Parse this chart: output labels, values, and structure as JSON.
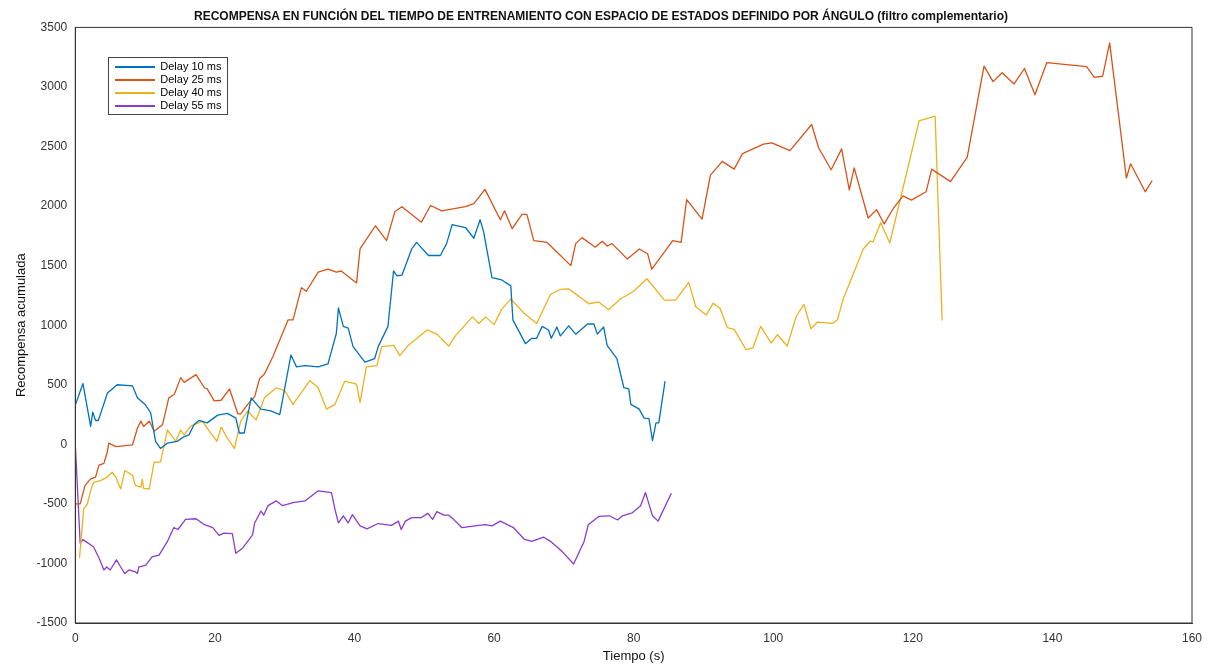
{
  "chart_data": {
    "type": "line",
    "title": "RECOMPENSA EN FUNCIÓN DEL TIEMPO DE ENTRENAMIENTO CON ESPACIO DE ESTADOS DEFINIDO POR ÁNGULO (filtro complementario)",
    "xlabel": "Tiempo (s)",
    "ylabel": "Recompensa acumulada",
    "xlim": [
      0,
      160
    ],
    "xticks": [
      0,
      20,
      40,
      60,
      80,
      100,
      120,
      140,
      160
    ],
    "ylim": [
      -1500,
      3500
    ],
    "yticks": [
      -1500,
      -1000,
      -500,
      0,
      500,
      1000,
      1500,
      2000,
      2500,
      3000,
      3500
    ],
    "grid": false,
    "legend": "top left",
    "marker": "none",
    "line_style": "solid",
    "series": [
      {
        "name": "Delay 10 ms",
        "color": "#0072bd",
        "x": [
          0,
          1.1,
          2.2,
          2.5,
          2.9,
          3.3,
          4.6,
          5,
          6,
          8.2,
          8.9,
          10,
          10.8,
          11.5,
          12.2,
          13.2,
          14.6,
          15.6,
          16.3,
          17,
          17.7,
          18.9,
          20.4,
          21.8,
          23,
          23.5,
          24.2,
          25.2,
          26.6,
          28,
          29.3,
          30.9,
          31.7,
          32.9,
          34.8,
          36.2,
          37.4,
          37.7,
          38.4,
          39.1,
          39.8,
          41.5,
          42.9,
          43.4,
          44.8,
          45.6,
          46.1,
          46.8,
          48.2,
          48.9,
          50.6,
          52.3,
          53.2,
          54,
          55.9,
          57.1,
          58,
          58.5,
          59.7,
          61.1,
          62.4,
          62.7,
          64.5,
          65.4,
          66.1,
          66.9,
          67.8,
          68.2,
          69,
          69.5,
          70.7,
          71.7,
          73.4,
          74.3,
          74.8,
          75.7,
          76.2,
          77.6,
          78.6,
          79.3,
          79.6,
          80.8,
          81.5,
          82.2,
          82.7,
          83.2,
          83.6,
          84.5
        ],
        "values": [
          330,
          510,
          150,
          270,
          200,
          200,
          430,
          450,
          500,
          490,
          390,
          335,
          265,
          25,
          -35,
          10,
          25,
          65,
          80,
          165,
          200,
          180,
          245,
          260,
          220,
          95,
          95,
          390,
          295,
          280,
          250,
          750,
          650,
          660,
          650,
          675,
          930,
          1145,
          990,
          975,
          820,
          690,
          720,
          820,
          990,
          1455,
          1415,
          1420,
          1640,
          1695,
          1585,
          1585,
          1685,
          1845,
          1820,
          1730,
          1885,
          1785,
          1400,
          1380,
          1330,
          1045,
          845,
          890,
          890,
          990,
          960,
          890,
          985,
          910,
          995,
          925,
          1010,
          1010,
          925,
          985,
          830,
          720,
          475,
          465,
          335,
          295,
          220,
          215,
          30,
          180,
          180,
          530
        ]
      },
      {
        "name": "Delay 25 ms",
        "color": "#d95319",
        "x": [
          0,
          0.7,
          1.4,
          2.2,
          2.9,
          3.4,
          4.1,
          4.6,
          4.8,
          5.8,
          8.2,
          8.9,
          9.4,
          9.8,
          10.6,
          11.3,
          12.5,
          13.4,
          14.2,
          15.1,
          15.6,
          17.3,
          18.5,
          18.9,
          19.9,
          20.9,
          22.1,
          23.3,
          23.7,
          24.7,
          25.7,
          26.4,
          27.1,
          28.3,
          30.5,
          31.2,
          32.4,
          33.1,
          34.8,
          36.2,
          37.4,
          38.1,
          40.3,
          40.8,
          43,
          44.6,
          45.8,
          46.8,
          49.6,
          50.9,
          52.5,
          55.9,
          57.1,
          58.7,
          60.9,
          61.5,
          62.6,
          64,
          64.7,
          65.7,
          67.6,
          71,
          71.7,
          72.6,
          74.5,
          75.5,
          76.2,
          76.9,
          79.1,
          80.8,
          82,
          82.6,
          85.6,
          86.8,
          87.6,
          89.8,
          91,
          92.7,
          94.4,
          95.6,
          98.6,
          99.8,
          102.4,
          105.5,
          106.5,
          108.3,
          109.8,
          110.9,
          111.6,
          113.6,
          114.8,
          115.9,
          117.2,
          118.6,
          119.8,
          121.9,
          122.7,
          125.4,
          127.8,
          130.2,
          131.5,
          132.8,
          134.5,
          136,
          137.5,
          139.2,
          144.9,
          146,
          147.2,
          148.2,
          150.6,
          151.2,
          153.3,
          154.3
        ],
        "values": [
          -500,
          -500,
          -345,
          -290,
          -275,
          -175,
          -160,
          -60,
          10,
          -20,
          -5,
          135,
          195,
          150,
          195,
          110,
          165,
          390,
          420,
          560,
          520,
          585,
          475,
          465,
          365,
          370,
          465,
          255,
          255,
          335,
          400,
          550,
          590,
          735,
          1045,
          1045,
          1315,
          1285,
          1445,
          1470,
          1445,
          1455,
          1355,
          1640,
          1835,
          1710,
          1955,
          1995,
          1865,
          2005,
          1960,
          1995,
          2020,
          2140,
          1885,
          1960,
          1810,
          1930,
          1930,
          1710,
          1695,
          1500,
          1685,
          1735,
          1655,
          1705,
          1665,
          1685,
          1555,
          1640,
          1600,
          1470,
          1710,
          1695,
          2055,
          1890,
          2260,
          2375,
          2310,
          2440,
          2520,
          2530,
          2465,
          2685,
          2490,
          2305,
          2480,
          2135,
          2320,
          1900,
          1970,
          1850,
          1980,
          2085,
          2050,
          2120,
          2310,
          2205,
          2410,
          3175,
          3045,
          3120,
          3025,
          3155,
          2935,
          3205,
          3170,
          3080,
          3090,
          3370,
          2235,
          2355,
          2120,
          2215
        ]
      },
      {
        "name": "Delay 40 ms",
        "color": "#edb120",
        "x": [
          0.6,
          1.2,
          1.7,
          2.2,
          2.6,
          3.6,
          4.6,
          5.3,
          5.8,
          6.5,
          7.1,
          8.2,
          8.6,
          9.4,
          9.6,
          9.8,
          10.6,
          11.3,
          12.2,
          13.2,
          14.4,
          15.1,
          15.6,
          16.5,
          18.2,
          19.2,
          20.3,
          20.9,
          21.8,
          22.8,
          23.7,
          24.7,
          25.9,
          27.1,
          28.8,
          30,
          31.2,
          33.6,
          34.8,
          36,
          37.2,
          38.6,
          40.3,
          40.8,
          41.7,
          43.2,
          43.9,
          45.6,
          46.5,
          47.7,
          50.4,
          51.8,
          53.5,
          54.5,
          56.9,
          57.8,
          58.8,
          60,
          61.1,
          62.4,
          64.3,
          66.1,
          68.1,
          69.5,
          70.7,
          73.6,
          75,
          76.4,
          78.1,
          80,
          81.9,
          84.4,
          86,
          87.9,
          88.9,
          90.4,
          91.4,
          92.4,
          93.4,
          94.4,
          96.1,
          97.1,
          98.2,
          99.7,
          100.6,
          102,
          103.3,
          104.4,
          105.4,
          106.3,
          108.5,
          109.2,
          110,
          112.9,
          113.9,
          114.3,
          115.4,
          116.7,
          120.9,
          123.2,
          124.2
        ],
        "values": [
          -955,
          -545,
          -505,
          -390,
          -320,
          -305,
          -275,
          -235,
          -275,
          -375,
          -220,
          -260,
          -345,
          -360,
          -295,
          -370,
          -375,
          -150,
          -150,
          120,
          25,
          120,
          80,
          150,
          195,
          110,
          25,
          145,
          50,
          -35,
          195,
          280,
          205,
          390,
          475,
          450,
          335,
          535,
          475,
          295,
          335,
          530,
          505,
          350,
          650,
          660,
          820,
          830,
          745,
          830,
          960,
          925,
          825,
          915,
          1070,
          1015,
          1070,
          1005,
          1135,
          1220,
          1100,
          1015,
          1260,
          1300,
          1305,
          1180,
          1195,
          1130,
          1220,
          1285,
          1390,
          1210,
          1210,
          1360,
          1155,
          1085,
          1185,
          1140,
          980,
          965,
          795,
          810,
          990,
          850,
          920,
          825,
          1075,
          1175,
          970,
          1025,
          1015,
          1045,
          1215,
          1640,
          1705,
          1700,
          1860,
          1690,
          2715,
          2755,
          1040
        ]
      },
      {
        "name": "Delay 55 ms",
        "color": "#8a3ccf",
        "x": [
          0,
          0.7,
          1.1,
          2.6,
          3.4,
          4.1,
          4.5,
          5,
          5.9,
          6.5,
          7.1,
          7.7,
          8.6,
          8.9,
          9.1,
          10.1,
          11,
          12,
          13.2,
          14.1,
          14.7,
          15.8,
          17.3,
          18.5,
          19.7,
          20.6,
          21.3,
          22.5,
          23,
          24,
          25.4,
          25.7,
          26.6,
          27,
          27.6,
          28.8,
          29.7,
          31.2,
          32.9,
          34.8,
          36.7,
          37.2,
          37.7,
          38.4,
          39.1,
          39.7,
          40.8,
          41.8,
          43.4,
          45.3,
          46.3,
          46.7,
          47.3,
          48.2,
          49.6,
          50.5,
          51.2,
          51.8,
          52.8,
          53.5,
          54.2,
          55.4,
          57.8,
          58.8,
          59.7,
          60.9,
          62.8,
          64.3,
          65.4,
          67.1,
          68.1,
          69,
          70,
          71.4,
          72.9,
          73.5,
          75,
          76.5,
          77.7,
          78.4,
          79.8,
          81,
          81.7,
          82.7,
          83.5,
          85.4
        ],
        "values": [
          0,
          -830,
          -800,
          -860,
          -955,
          -1055,
          -1030,
          -1055,
          -970,
          -1030,
          -1085,
          -1055,
          -1070,
          -1085,
          -1030,
          -1015,
          -945,
          -930,
          -815,
          -700,
          -715,
          -630,
          -625,
          -675,
          -700,
          -765,
          -745,
          -750,
          -915,
          -870,
          -760,
          -660,
          -560,
          -595,
          -515,
          -475,
          -515,
          -490,
          -475,
          -390,
          -405,
          -545,
          -660,
          -600,
          -660,
          -590,
          -685,
          -710,
          -665,
          -680,
          -645,
          -715,
          -645,
          -615,
          -615,
          -580,
          -630,
          -565,
          -595,
          -595,
          -630,
          -700,
          -680,
          -675,
          -685,
          -645,
          -700,
          -795,
          -815,
          -780,
          -815,
          -860,
          -915,
          -1005,
          -815,
          -675,
          -605,
          -600,
          -635,
          -600,
          -575,
          -515,
          -405,
          -600,
          -645,
          -410
        ]
      }
    ]
  }
}
